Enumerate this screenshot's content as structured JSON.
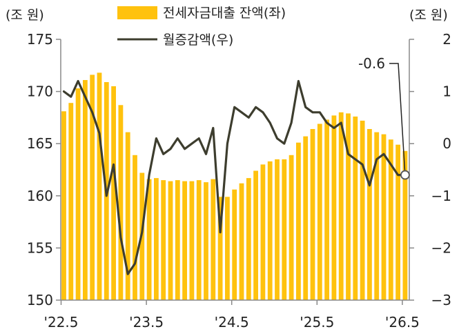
{
  "chart_data": {
    "type": "bar+line",
    "left_axis": {
      "unit": "(조 원)",
      "min": 150,
      "max": 175,
      "ticks": [
        150,
        155,
        160,
        165,
        170,
        175
      ]
    },
    "right_axis": {
      "unit": "(조 원)",
      "min": -3,
      "max": 2,
      "ticks": [
        -3,
        -2,
        -1,
        0,
        1,
        2
      ]
    },
    "x_ticks": [
      "'22.5",
      "'23.5",
      "'24.5",
      "'25.5",
      "'26.5"
    ],
    "series": [
      {
        "name": "전세자금대출 잔액(좌)",
        "type": "bar",
        "color": "#FFC20E",
        "values": [
          168.1,
          168.9,
          170.3,
          171.1,
          171.6,
          171.8,
          170.9,
          170.5,
          168.7,
          166.1,
          163.9,
          162.2,
          161.6,
          161.7,
          161.5,
          161.4,
          161.5,
          161.4,
          161.4,
          161.5,
          161.3,
          161.6,
          159.9,
          159.9,
          160.6,
          161.2,
          161.7,
          162.4,
          163.0,
          163.3,
          163.5,
          163.5,
          163.9,
          165.1,
          165.7,
          166.4,
          166.9,
          167.3,
          167.7,
          168.0,
          167.9,
          167.6,
          167.2,
          166.4,
          166.1,
          165.9,
          165.4,
          164.9,
          164.3
        ]
      },
      {
        "name": "월증감액(우)",
        "type": "line",
        "color": "#3D3D2E",
        "values": [
          1.0,
          0.9,
          1.2,
          0.9,
          0.6,
          0.2,
          -1.0,
          -0.4,
          -1.8,
          -2.5,
          -2.3,
          -1.7,
          -0.6,
          0.1,
          -0.2,
          -0.1,
          0.1,
          -0.1,
          0.0,
          0.1,
          -0.2,
          0.3,
          -1.7,
          0.0,
          0.7,
          0.6,
          0.5,
          0.7,
          0.6,
          0.4,
          0.1,
          0.0,
          0.4,
          1.2,
          0.7,
          0.6,
          0.6,
          0.4,
          0.3,
          0.4,
          -0.2,
          -0.3,
          -0.4,
          -0.8,
          -0.3,
          -0.2,
          -0.4,
          -0.6,
          -0.6
        ]
      }
    ],
    "annotation": {
      "label": "-0.6"
    }
  }
}
